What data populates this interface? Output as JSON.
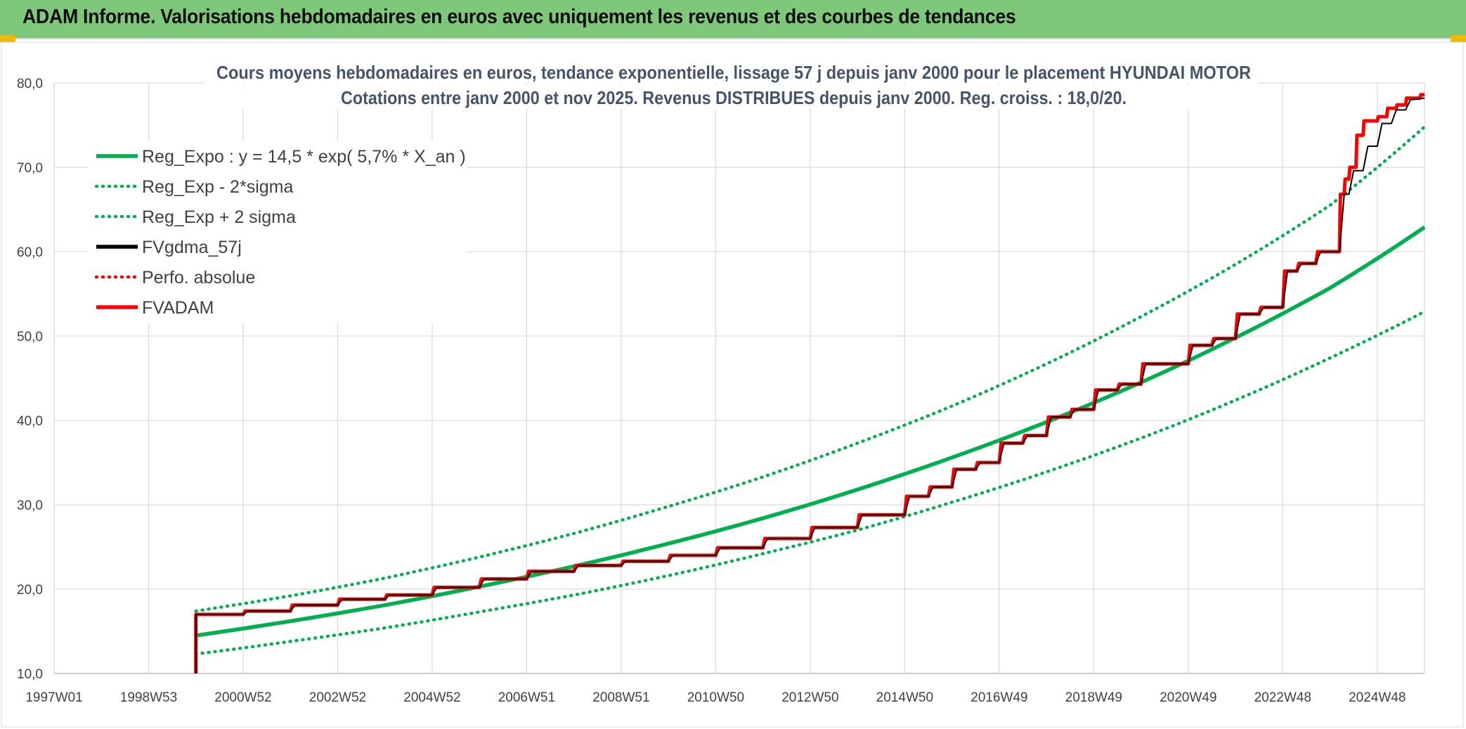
{
  "header": {
    "title": "ADAM Informe. Valorisations hebdomadaires en euros avec uniquement les revenus et des courbes de tendances"
  },
  "colors": {
    "header_bg": "#7ec87a",
    "reg_expo": "#00b050",
    "fvgdma": "#000000",
    "fvadam": "#ff0000",
    "perfo": "#ff0000",
    "grid": "#d9d9d9",
    "title": "#44546a"
  },
  "chart_data": {
    "type": "line",
    "title_lines": [
      "Cours moyens hebdomadaires en euros, tendance exponentielle, lissage 57 j depuis janv 2000 pour le placement HYUNDAI MOTOR",
      "Cotations entre janv 2000 et nov 2025. Revenus DISTRIBUES depuis janv 2000. Reg. croiss. : 18,0/20."
    ],
    "xlabel": "",
    "ylabel": "",
    "x_range": [
      1997.0,
      2026.0
    ],
    "ylim": [
      10,
      80
    ],
    "y_ticks": [
      "10,0",
      "20,0",
      "30,0",
      "40,0",
      "50,0",
      "60,0",
      "70,0",
      "80,0"
    ],
    "y_tick_values": [
      10,
      20,
      30,
      40,
      50,
      60,
      70,
      80
    ],
    "x_ticks": [
      {
        "label": "1997W01",
        "year": 1997.0
      },
      {
        "label": "1998W53",
        "year": 1999.0
      },
      {
        "label": "2000W52",
        "year": 2001.0
      },
      {
        "label": "2002W52",
        "year": 2003.0
      },
      {
        "label": "2004W52",
        "year": 2005.0
      },
      {
        "label": "2006W51",
        "year": 2007.0
      },
      {
        "label": "2008W51",
        "year": 2009.0
      },
      {
        "label": "2010W50",
        "year": 2011.0
      },
      {
        "label": "2012W50",
        "year": 2013.0
      },
      {
        "label": "2014W50",
        "year": 2015.0
      },
      {
        "label": "2016W49",
        "year": 2017.0
      },
      {
        "label": "2018W49",
        "year": 2019.0
      },
      {
        "label": "2020W49",
        "year": 2021.0
      },
      {
        "label": "2022W48",
        "year": 2023.0
      },
      {
        "label": "2024W48",
        "year": 2025.0
      }
    ],
    "grid": true,
    "legend_position": "top-left",
    "legend": [
      {
        "label": "Reg_Expo : y = 14,5 * exp( 5,7% *  X_an )",
        "style": "solid",
        "color": "#00b050"
      },
      {
        "label": "Reg_Exp - 2*sigma",
        "style": "dotted",
        "color": "#00b050"
      },
      {
        "label": "Reg_Exp + 2 sigma",
        "style": "dotted",
        "color": "#00b050"
      },
      {
        "label": "FVgdma_57j",
        "style": "solid",
        "color": "#000000"
      },
      {
        "label": "Perfo. absolue",
        "style": "dotted",
        "color": "#ff0000"
      },
      {
        "label": "FVADAM",
        "style": "solid",
        "color": "#ff0000"
      }
    ],
    "series": [
      {
        "name": "Reg_Expo",
        "x": [
          2000.0,
          2002.0,
          2004.0,
          2006.0,
          2008.0,
          2010.0,
          2012.0,
          2014.0,
          2016.0,
          2018.0,
          2020.0,
          2022.0,
          2024.0,
          2026.0
        ],
        "values": [
          14.5,
          16.2,
          18.1,
          20.3,
          22.7,
          25.4,
          28.4,
          31.8,
          35.6,
          39.8,
          44.5,
          49.8,
          55.7,
          62.9
        ]
      },
      {
        "name": "Reg_Exp - 2*sigma",
        "x": [
          2000.0,
          2002.0,
          2004.0,
          2006.0,
          2008.0,
          2010.0,
          2012.0,
          2014.0,
          2016.0,
          2018.0,
          2020.0,
          2022.0,
          2024.0,
          2026.0
        ],
        "values": [
          12.3,
          13.8,
          15.4,
          17.3,
          19.3,
          21.6,
          24.2,
          27.0,
          30.3,
          33.9,
          37.9,
          42.4,
          47.4,
          52.9
        ]
      },
      {
        "name": "Reg_Exp + 2 sigma",
        "x": [
          2000.0,
          2002.0,
          2004.0,
          2006.0,
          2008.0,
          2010.0,
          2012.0,
          2014.0,
          2016.0,
          2018.0,
          2020.0,
          2022.0,
          2024.0,
          2026.0
        ],
        "values": [
          17.4,
          19.2,
          21.3,
          23.8,
          26.6,
          29.8,
          33.3,
          37.3,
          41.7,
          46.7,
          52.3,
          58.5,
          65.5,
          74.8
        ]
      },
      {
        "name": "FVADAM",
        "x": [
          2000.0,
          2000.0,
          2001.0,
          2001.04,
          2002.0,
          2002.04,
          2003.0,
          2003.04,
          2004.0,
          2004.04,
          2005.0,
          2005.04,
          2006.0,
          2006.04,
          2007.0,
          2007.04,
          2008.0,
          2008.04,
          2009.0,
          2009.04,
          2010.0,
          2010.04,
          2011.0,
          2011.04,
          2012.0,
          2012.04,
          2013.0,
          2013.04,
          2014.0,
          2014.04,
          2015.0,
          2015.04,
          2015.5,
          2015.54,
          2016.0,
          2016.04,
          2016.5,
          2016.54,
          2017.0,
          2017.04,
          2017.5,
          2017.54,
          2018.0,
          2018.04,
          2018.5,
          2018.54,
          2019.0,
          2019.04,
          2019.5,
          2019.54,
          2020.0,
          2020.04,
          2021.0,
          2021.04,
          2021.5,
          2021.54,
          2022.0,
          2022.04,
          2022.5,
          2022.54,
          2023.0,
          2023.04,
          2023.3,
          2023.34,
          2023.7,
          2023.74,
          2024.2,
          2024.22,
          2024.3,
          2024.32,
          2024.4,
          2024.42,
          2024.55,
          2024.57,
          2024.7,
          2024.72,
          2025.0,
          2025.02,
          2025.2,
          2025.22,
          2025.4,
          2025.42,
          2025.6,
          2025.62,
          2025.9,
          2025.92,
          2026.0
        ],
        "values": [
          10.0,
          17.0,
          17.0,
          17.4,
          17.4,
          18.1,
          18.1,
          18.8,
          18.8,
          19.3,
          19.3,
          20.2,
          20.2,
          21.2,
          21.2,
          22.1,
          22.1,
          22.8,
          22.8,
          23.3,
          23.3,
          24.0,
          24.0,
          24.9,
          24.9,
          26.0,
          26.0,
          27.3,
          27.3,
          28.8,
          28.8,
          31.0,
          31.0,
          32.1,
          32.1,
          34.2,
          34.2,
          35.0,
          35.0,
          37.3,
          37.3,
          38.2,
          38.2,
          40.4,
          40.4,
          41.3,
          41.3,
          43.6,
          43.6,
          44.3,
          44.3,
          46.7,
          46.7,
          48.9,
          48.9,
          49.7,
          49.7,
          52.6,
          52.6,
          53.4,
          53.4,
          57.7,
          57.7,
          58.6,
          58.6,
          60.0,
          60.0,
          66.8,
          66.8,
          68.6,
          68.6,
          70.0,
          70.0,
          73.8,
          73.8,
          75.5,
          75.5,
          76.0,
          76.0,
          77.0,
          77.0,
          77.4,
          77.4,
          78.2,
          78.2,
          78.6,
          78.6
        ]
      },
      {
        "name": "FVgdma_57j",
        "x": [
          2000.0,
          2000.0,
          2001.0,
          2001.1,
          2002.0,
          2002.1,
          2003.0,
          2003.1,
          2004.0,
          2004.1,
          2005.0,
          2005.1,
          2006.0,
          2006.1,
          2007.0,
          2007.1,
          2008.0,
          2008.1,
          2009.0,
          2009.1,
          2010.0,
          2010.1,
          2011.0,
          2011.1,
          2012.0,
          2012.1,
          2013.0,
          2013.1,
          2014.0,
          2014.1,
          2015.0,
          2015.1,
          2015.5,
          2015.6,
          2016.0,
          2016.1,
          2016.5,
          2016.6,
          2017.0,
          2017.1,
          2017.5,
          2017.6,
          2018.0,
          2018.1,
          2018.5,
          2018.6,
          2019.0,
          2019.1,
          2019.5,
          2019.6,
          2020.0,
          2020.1,
          2021.0,
          2021.1,
          2021.5,
          2021.6,
          2022.0,
          2022.1,
          2022.5,
          2022.6,
          2023.0,
          2023.1,
          2023.3,
          2023.4,
          2023.7,
          2023.8,
          2024.2,
          2024.3,
          2024.4,
          2024.5,
          2024.7,
          2024.8,
          2025.0,
          2025.1,
          2025.3,
          2025.4,
          2025.6,
          2025.7,
          2026.0
        ],
        "values": [
          10.0,
          17.0,
          17.0,
          17.4,
          17.4,
          18.1,
          18.1,
          18.8,
          18.8,
          19.3,
          19.3,
          20.2,
          20.2,
          21.2,
          21.2,
          22.1,
          22.1,
          22.8,
          22.8,
          23.3,
          23.3,
          24.0,
          24.0,
          24.9,
          24.9,
          26.0,
          26.0,
          27.3,
          27.3,
          28.8,
          28.8,
          31.0,
          31.0,
          32.1,
          32.1,
          34.2,
          34.2,
          35.0,
          35.0,
          37.3,
          37.3,
          38.2,
          38.2,
          40.4,
          40.4,
          41.3,
          41.3,
          43.6,
          43.6,
          44.3,
          44.3,
          46.7,
          46.7,
          48.9,
          48.9,
          49.7,
          49.7,
          52.6,
          52.6,
          53.4,
          53.4,
          57.7,
          57.7,
          58.6,
          58.6,
          60.0,
          60.0,
          66.8,
          66.8,
          69.6,
          69.6,
          72.5,
          72.5,
          75.2,
          75.2,
          76.8,
          76.8,
          78.0,
          78.2
        ]
      }
    ]
  }
}
